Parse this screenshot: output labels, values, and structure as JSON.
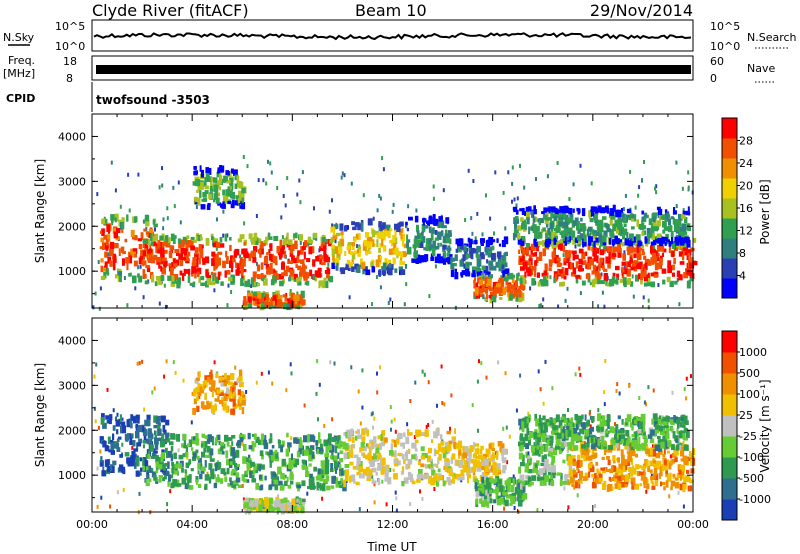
{
  "header": {
    "station": "Clyde River (fitACF)",
    "beam": "Beam 10",
    "date": "29/Nov/2014"
  },
  "status_panel": {
    "nsky_label": "N.Sky",
    "nsky_ticks": [
      "10^5",
      "10^0"
    ],
    "nsearch_label": "N.Search",
    "nsearch_ticks": [
      "10^5",
      "10^0"
    ],
    "freq_label": "Freq.",
    "freq_unit": "[MHz]",
    "freq_ticks": [
      "18",
      "8"
    ],
    "nave_label": "Nave",
    "nave_ticks": [
      "60",
      "0"
    ],
    "cpid_label": "CPID",
    "cpid_value": "twofsound -3503"
  },
  "chart_data": [
    {
      "type": "heatmap",
      "quantity": "Power",
      "xlabel": "",
      "ylabel": "Slant Range [km]",
      "xlim": [
        0,
        24
      ],
      "ylim": [
        180,
        4500
      ],
      "yticks": [
        "1000",
        "2000",
        "3000",
        "4000"
      ],
      "colorbar": {
        "label": "Power [dB]",
        "range": [
          0,
          32
        ],
        "ticks": [
          "4",
          "8",
          "12",
          "16",
          "20",
          "24",
          "28"
        ],
        "colors": [
          "#0000ff",
          "#2b3fb5",
          "#2f7f7f",
          "#30a050",
          "#a8c020",
          "#f0d000",
          "#f09000",
          "#f05000",
          "#ff0000"
        ]
      },
      "bands": [
        {
          "t0": 0.3,
          "t1": 2.5,
          "r_lo": 800,
          "r_hi": 2200,
          "level": 27
        },
        {
          "t0": 2.0,
          "t1": 9.5,
          "r_lo": 700,
          "r_hi": 1800,
          "level": 28
        },
        {
          "t0": 9.5,
          "t1": 12.5,
          "r_lo": 950,
          "r_hi": 2100,
          "level": 20
        },
        {
          "t0": 12.5,
          "t1": 14.3,
          "r_lo": 1200,
          "r_hi": 2200,
          "level": 10
        },
        {
          "t0": 14.3,
          "t1": 16.5,
          "r_lo": 900,
          "r_hi": 1700,
          "level": 9
        },
        {
          "t0": 15.2,
          "t1": 17.2,
          "r_lo": 350,
          "r_hi": 900,
          "level": 27
        },
        {
          "t0": 17.0,
          "t1": 24.0,
          "r_lo": 700,
          "r_hi": 1700,
          "level": 28
        },
        {
          "t0": 16.8,
          "t1": 23.8,
          "r_lo": 1600,
          "r_hi": 2400,
          "level": 12
        },
        {
          "t0": 6.0,
          "t1": 8.4,
          "r_lo": 200,
          "r_hi": 500,
          "level": 27
        },
        {
          "t0": 4.0,
          "t1": 6.0,
          "r_lo": 2400,
          "r_hi": 3300,
          "level": 14
        }
      ]
    },
    {
      "type": "heatmap",
      "quantity": "Velocity",
      "xlabel": "Time UT",
      "ylabel": "Slant Range [km]",
      "xlim": [
        0,
        24
      ],
      "ylim": [
        180,
        4500
      ],
      "xticks": [
        "00:00",
        "04:00",
        "08:00",
        "12:00",
        "16:00",
        "20:00",
        "00:00"
      ],
      "yticks": [
        "1000",
        "2000",
        "3000",
        "4000"
      ],
      "colorbar": {
        "label": "Velocity [m s⁻¹]",
        "ticks": [
          "1000",
          "500",
          "100",
          "25",
          "-25",
          "-100",
          "-500",
          "-1000"
        ],
        "colors": [
          "#1a3fb5",
          "#2e6f8f",
          "#2e9a4f",
          "#66cc33",
          "#c0c0c0",
          "#f0c000",
          "#f09000",
          "#f05000",
          "#ff0000"
        ]
      },
      "bands": [
        {
          "t0": 0.3,
          "t1": 3.0,
          "r_lo": 1000,
          "r_hi": 2300,
          "level": 0.08
        },
        {
          "t0": 2.0,
          "t1": 10.0,
          "r_lo": 700,
          "r_hi": 1900,
          "level": 0.28
        },
        {
          "t0": 10.0,
          "t1": 14.5,
          "r_lo": 800,
          "r_hi": 2000,
          "level": 0.55
        },
        {
          "t0": 14.5,
          "t1": 16.5,
          "r_lo": 900,
          "r_hi": 1700,
          "level": 0.6
        },
        {
          "t0": 15.2,
          "t1": 17.2,
          "r_lo": 350,
          "r_hi": 900,
          "level": 0.3
        },
        {
          "t0": 17.0,
          "t1": 19.2,
          "r_lo": 800,
          "r_hi": 1900,
          "level": 0.35
        },
        {
          "t0": 19.0,
          "t1": 24.0,
          "r_lo": 700,
          "r_hi": 1700,
          "level": 0.72
        },
        {
          "t0": 17.0,
          "t1": 23.8,
          "r_lo": 1600,
          "r_hi": 2300,
          "level": 0.3
        },
        {
          "t0": 6.0,
          "t1": 8.4,
          "r_lo": 200,
          "r_hi": 450,
          "level": 0.45
        },
        {
          "t0": 4.0,
          "t1": 6.0,
          "r_lo": 2400,
          "r_hi": 3300,
          "level": 0.7
        }
      ]
    }
  ]
}
